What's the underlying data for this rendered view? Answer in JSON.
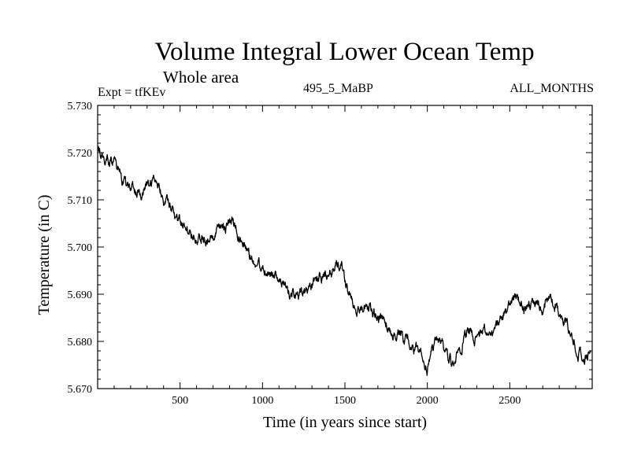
{
  "chart_data": {
    "type": "line",
    "title": "Volume Integral Lower Ocean Temp",
    "subtitle": "Whole area",
    "labels": {
      "left": "Expt = tfKEv",
      "center": "495_5_MaBP",
      "right": "ALL_MONTHS"
    },
    "xlabel": "Time (in years since start)",
    "ylabel": "Temperature (in C)",
    "xlim": [
      0,
      3000
    ],
    "ylim": [
      5.67,
      5.73
    ],
    "x_ticks": [
      500,
      1000,
      1500,
      2000,
      2500
    ],
    "x_tick_labels": [
      "500",
      "1000",
      "1500",
      "2000",
      "2500"
    ],
    "y_ticks": [
      5.67,
      5.68,
      5.69,
      5.7,
      5.71,
      5.72,
      5.73
    ],
    "y_tick_labels": [
      "5.670",
      "5.680",
      "5.690",
      "5.700",
      "5.710",
      "5.720",
      "5.730"
    ],
    "grid": false,
    "legend": "none",
    "series": [
      {
        "color": "#000000",
        "x": [
          0,
          40,
          80,
          110,
          150,
          200,
          250,
          300,
          330,
          370,
          400,
          450,
          500,
          550,
          600,
          650,
          700,
          740,
          780,
          820,
          860,
          900,
          950,
          1000,
          1050,
          1100,
          1150,
          1200,
          1250,
          1300,
          1350,
          1400,
          1440,
          1480,
          1520,
          1560,
          1600,
          1650,
          1700,
          1750,
          1800,
          1850,
          1900,
          1950,
          2000,
          2050,
          2100,
          2150,
          2200,
          2250,
          2300,
          2350,
          2400,
          2450,
          2500,
          2530,
          2560,
          2600,
          2650,
          2700,
          2750,
          2800,
          2850,
          2900,
          2950,
          2990
        ],
        "y": [
          5.7205,
          5.719,
          5.7185,
          5.7185,
          5.714,
          5.7125,
          5.7105,
          5.7135,
          5.7145,
          5.714,
          5.71,
          5.7075,
          5.705,
          5.704,
          5.7025,
          5.7015,
          5.7015,
          5.7035,
          5.7045,
          5.7055,
          5.702,
          5.6995,
          5.697,
          5.696,
          5.6945,
          5.6925,
          5.691,
          5.6895,
          5.6895,
          5.6915,
          5.6935,
          5.6945,
          5.696,
          5.6965,
          5.69,
          5.688,
          5.687,
          5.6865,
          5.685,
          5.684,
          5.6815,
          5.681,
          5.679,
          5.678,
          5.674,
          5.681,
          5.679,
          5.6755,
          5.679,
          5.6825,
          5.6805,
          5.6825,
          5.681,
          5.6845,
          5.6875,
          5.6895,
          5.688,
          5.687,
          5.688,
          5.6875,
          5.689,
          5.6865,
          5.683,
          5.679,
          5.677,
          5.6775
        ]
      }
    ]
  }
}
